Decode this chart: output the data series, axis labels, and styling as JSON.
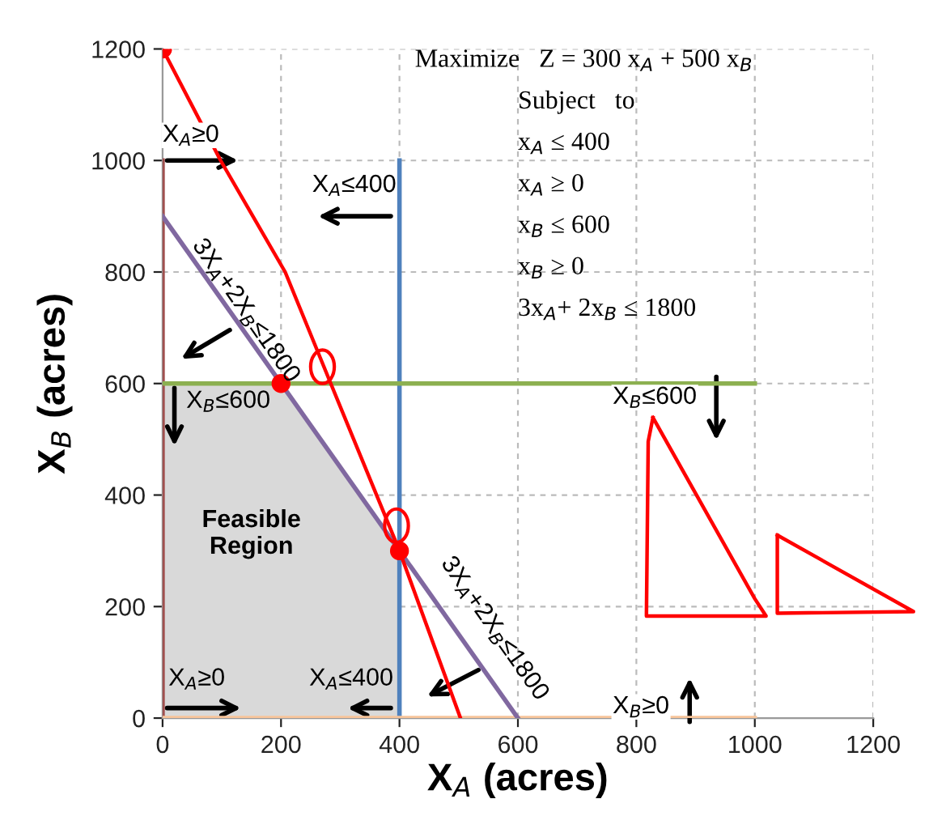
{
  "chart_data": {
    "type": "line",
    "xlabel": "X$_{A}$ (acres)",
    "ylabel": "X$_{B}$ (acres)",
    "xlim": [
      0,
      1200
    ],
    "ylim": [
      0,
      1200
    ],
    "xticks": [
      0,
      200,
      400,
      600,
      800,
      1000,
      1200
    ],
    "yticks": [
      0,
      200,
      400,
      600,
      800,
      1000,
      1200
    ],
    "grid": true,
    "legend": false,
    "series": [
      {
        "type": "area",
        "x": [
          0,
          200,
          400
        ],
        "values": [
          600,
          600,
          300
        ],
        "color": "#d9d9d9"
      },
      {
        "x": [
          0,
          0
        ],
        "values": [
          0,
          1000
        ],
        "color": "#a0504f"
      },
      {
        "x": [
          400,
          400
        ],
        "values": [
          0,
          1000
        ],
        "color": "#4f81bd"
      },
      {
        "x": [
          0,
          1000
        ],
        "values": [
          600,
          600
        ],
        "color": "#8cb050"
      },
      {
        "x": [
          0,
          1000
        ],
        "values": [
          0,
          0
        ],
        "color": "#f7c49a"
      },
      {
        "x": [
          0,
          600
        ],
        "values": [
          900,
          0
        ],
        "color": "#8068a0"
      },
      {
        "x": [
          0,
          98,
          207,
          284,
          400,
          503
        ],
        "values": [
          1200,
          1000,
          800,
          600,
          300,
          0
        ],
        "color": "#ff0000"
      },
      {
        "type": "scatter",
        "x": [
          0,
          200,
          400
        ],
        "values": [
          1200,
          600,
          300
        ],
        "color": "#ff0000"
      }
    ],
    "annotations": [
      "Maximize   Z = 300 x$_{A}$ + 500 x$_{B}$",
      "Subject   to",
      "x$_{A}$ ≤ 400",
      "x$_{A}$ ≥ 0",
      "x$_{B}$ ≤ 600",
      "x$_{B}$ ≥ 0",
      "3x$_{A}$+ 2x$_{B}$ ≤ 1800",
      "X$_{A}$≥0",
      "X$_{A}$≤400",
      "3X$_{A}$+2X$_{B}$≤1800",
      "X$_{B}$≤600",
      "Feasible\nRegion",
      "X$_{B}$≤600",
      {
        "text": "X$_{A}$≥0",
        "x": 0,
        "y": 0
      },
      "X$_{A}$≤400",
      "3X$_{A}$+2X$_{B}$≤1800",
      "X$_{B}$≥0"
    ]
  }
}
